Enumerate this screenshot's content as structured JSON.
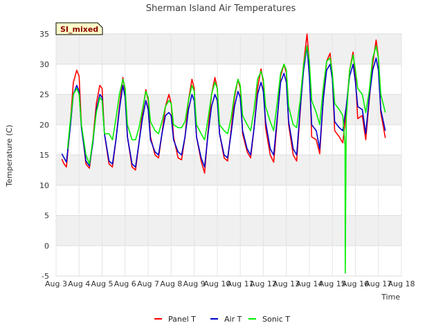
{
  "chart_data": {
    "type": "line",
    "title": "Sherman Island Air Temperatures",
    "xlabel": "Time",
    "ylabel": "Temperature (C)",
    "badge": "SI_mixed",
    "ylim": [
      -5,
      35
    ],
    "yticks": [
      -5,
      0,
      5,
      10,
      15,
      20,
      25,
      30,
      35
    ],
    "xlim": [
      3,
      18
    ],
    "x_tick_values": [
      3,
      4,
      5,
      6,
      7,
      8,
      9,
      10,
      11,
      12,
      13,
      14,
      15,
      16,
      17,
      18
    ],
    "x_tick_labels": [
      "Aug 3",
      "Aug 4",
      "Aug 5",
      "Aug 6",
      "Aug 7",
      "Aug 8",
      "Aug 9",
      "Aug 10",
      "Aug 11",
      "Aug 12",
      "Aug 13",
      "Aug 14",
      "Aug 15",
      "Aug 16",
      "Aug 17",
      "Aug 18"
    ],
    "grid": true,
    "legend_position": "bottom-center",
    "series": [
      {
        "name": "Panel T",
        "color": "#ff0000",
        "x": [
          3.25,
          3.35,
          3.45,
          3.6,
          3.75,
          3.9,
          4.0,
          4.1,
          4.3,
          4.45,
          4.6,
          4.75,
          4.9,
          5.0,
          5.1,
          5.3,
          5.45,
          5.6,
          5.75,
          5.9,
          6.0,
          6.1,
          6.3,
          6.45,
          6.6,
          6.75,
          6.9,
          7.0,
          7.1,
          7.3,
          7.45,
          7.6,
          7.75,
          7.9,
          8.0,
          8.1,
          8.3,
          8.45,
          8.6,
          8.75,
          8.9,
          9.0,
          9.1,
          9.3,
          9.45,
          9.6,
          9.75,
          9.9,
          10.0,
          10.1,
          10.3,
          10.45,
          10.6,
          10.75,
          10.9,
          11.0,
          11.1,
          11.3,
          11.45,
          11.6,
          11.75,
          11.9,
          12.0,
          12.1,
          12.3,
          12.45,
          12.6,
          12.75,
          12.9,
          13.0,
          13.1,
          13.3,
          13.45,
          13.6,
          13.75,
          13.9,
          14.0,
          14.1,
          14.3,
          14.45,
          14.6,
          14.75,
          14.9,
          15.0,
          15.1,
          15.3,
          15.45,
          15.6,
          15.75,
          15.9,
          16.0,
          16.1,
          16.3,
          16.45,
          16.6,
          16.75,
          16.9,
          17.0,
          17.1,
          17.3
        ],
        "y": [
          14.3,
          13.5,
          13.0,
          19.5,
          27.0,
          29.0,
          28.0,
          20.0,
          13.5,
          12.8,
          17.5,
          23.5,
          26.5,
          26.0,
          18.5,
          13.5,
          13.0,
          17.5,
          23.0,
          27.8,
          25.5,
          18.0,
          13.0,
          12.5,
          17.0,
          22.0,
          25.8,
          24.0,
          18.0,
          15.0,
          14.5,
          18.5,
          23.0,
          25.0,
          23.5,
          18.0,
          14.5,
          14.2,
          18.0,
          24.0,
          27.5,
          26.0,
          18.0,
          14.0,
          12.0,
          19.0,
          25.0,
          27.8,
          26.0,
          18.5,
          14.5,
          14.0,
          19.0,
          24.5,
          27.5,
          26.0,
          18.5,
          15.5,
          14.5,
          19.5,
          26.0,
          29.2,
          27.0,
          19.5,
          15.0,
          13.8,
          20.5,
          28.0,
          30.0,
          28.5,
          20.0,
          15.0,
          14.0,
          22.0,
          30.0,
          35.0,
          30.0,
          18.0,
          17.5,
          15.2,
          24.0,
          30.5,
          31.8,
          28.0,
          19.0,
          18.0,
          17.0,
          22.0,
          29.0,
          32.0,
          28.0,
          21.0,
          21.5,
          17.5,
          24.0,
          30.0,
          34.0,
          31.0,
          22.0,
          17.8
        ]
      },
      {
        "name": "Air T",
        "color": "#0000cc",
        "x": [
          3.25,
          3.35,
          3.45,
          3.6,
          3.75,
          3.9,
          4.0,
          4.1,
          4.3,
          4.45,
          4.6,
          4.75,
          4.9,
          5.0,
          5.1,
          5.3,
          5.45,
          5.6,
          5.75,
          5.9,
          6.0,
          6.1,
          6.3,
          6.45,
          6.6,
          6.75,
          6.9,
          7.0,
          7.1,
          7.3,
          7.45,
          7.6,
          7.75,
          7.9,
          8.0,
          8.1,
          8.3,
          8.45,
          8.6,
          8.75,
          8.9,
          9.0,
          9.1,
          9.3,
          9.45,
          9.6,
          9.75,
          9.9,
          10.0,
          10.1,
          10.3,
          10.45,
          10.6,
          10.75,
          10.9,
          11.0,
          11.1,
          11.3,
          11.45,
          11.6,
          11.75,
          11.9,
          12.0,
          12.1,
          12.3,
          12.45,
          12.6,
          12.75,
          12.9,
          13.0,
          13.1,
          13.3,
          13.45,
          13.6,
          13.75,
          13.9,
          14.0,
          14.1,
          14.3,
          14.45,
          14.6,
          14.75,
          14.9,
          15.0,
          15.1,
          15.3,
          15.45,
          15.6,
          15.75,
          15.9,
          16.0,
          16.1,
          16.3,
          16.45,
          16.6,
          16.75,
          16.9,
          17.0,
          17.1,
          17.3
        ],
        "y": [
          15.2,
          14.5,
          13.8,
          19.0,
          25.0,
          26.5,
          25.5,
          19.5,
          14.0,
          13.2,
          17.0,
          22.5,
          25.0,
          24.5,
          18.5,
          14.0,
          13.5,
          17.5,
          22.5,
          26.5,
          24.5,
          18.0,
          13.5,
          13.0,
          17.0,
          21.0,
          24.0,
          22.5,
          17.5,
          15.5,
          15.0,
          18.5,
          21.5,
          22.0,
          21.5,
          17.5,
          15.5,
          15.0,
          18.0,
          22.5,
          25.0,
          24.0,
          18.0,
          14.5,
          13.0,
          18.5,
          23.0,
          25.0,
          24.0,
          18.5,
          15.0,
          14.5,
          18.5,
          23.0,
          25.5,
          24.5,
          19.0,
          16.0,
          15.0,
          19.5,
          25.0,
          27.0,
          25.5,
          20.5,
          16.0,
          15.0,
          21.0,
          27.0,
          28.5,
          27.0,
          20.5,
          16.0,
          15.0,
          22.5,
          29.0,
          33.0,
          28.0,
          20.0,
          19.0,
          16.0,
          24.0,
          29.0,
          30.0,
          27.5,
          20.5,
          19.5,
          19.0,
          23.0,
          28.0,
          30.0,
          27.0,
          23.0,
          22.5,
          18.5,
          24.5,
          29.0,
          31.0,
          29.0,
          22.5,
          19.0
        ]
      },
      {
        "name": "Sonic T",
        "color": "#00ee00",
        "x": [
          3.5,
          3.6,
          3.75,
          3.9,
          4.0,
          4.1,
          4.3,
          4.45,
          4.6,
          4.75,
          4.9,
          5.0,
          5.1,
          5.3,
          5.45,
          5.6,
          5.75,
          5.9,
          6.0,
          6.1,
          6.3,
          6.45,
          6.6,
          6.75,
          6.9,
          7.0,
          7.1,
          7.3,
          7.45,
          7.6,
          7.75,
          7.9,
          8.0,
          8.1,
          8.3,
          8.45,
          8.6,
          8.75,
          8.9,
          9.0,
          9.1,
          9.3,
          9.45,
          9.6,
          9.75,
          9.9,
          10.0,
          10.1,
          10.3,
          10.45,
          10.6,
          10.75,
          10.9,
          11.0,
          11.1,
          11.3,
          11.45,
          11.6,
          11.75,
          11.9,
          12.0,
          12.1,
          12.3,
          12.45,
          12.6,
          12.75,
          12.9,
          13.0,
          13.1,
          13.3,
          13.45,
          13.6,
          13.75,
          13.9,
          14.0,
          14.1,
          14.3,
          14.45,
          14.6,
          14.75,
          14.9,
          15.0,
          15.1,
          15.3,
          15.45,
          15.55,
          15.56,
          15.6,
          15.75,
          15.9,
          16.0,
          16.1,
          16.3,
          16.45,
          16.6,
          16.75,
          16.9,
          17.0,
          17.1,
          17.3
        ],
        "y": [
          16.0,
          20.0,
          25.0,
          26.0,
          25.0,
          20.0,
          15.0,
          13.5,
          17.5,
          22.0,
          24.5,
          24.0,
          18.5,
          18.5,
          17.5,
          21.0,
          25.0,
          27.5,
          26.0,
          20.0,
          17.5,
          17.5,
          19.5,
          22.5,
          25.5,
          24.5,
          20.5,
          19.0,
          18.5,
          20.5,
          23.0,
          24.0,
          23.5,
          20.0,
          19.5,
          19.5,
          20.5,
          24.0,
          26.5,
          25.5,
          20.0,
          18.5,
          17.5,
          21.0,
          25.0,
          27.0,
          26.0,
          20.0,
          19.0,
          18.5,
          21.0,
          25.0,
          27.5,
          26.5,
          21.5,
          20.0,
          19.0,
          22.5,
          27.5,
          28.8,
          27.5,
          23.0,
          20.5,
          19.0,
          23.5,
          28.5,
          30.0,
          29.0,
          23.0,
          20.0,
          19.5,
          24.0,
          30.0,
          33.0,
          30.5,
          24.0,
          22.0,
          20.0,
          26.0,
          30.5,
          31.0,
          28.5,
          23.5,
          22.5,
          21.5,
          16.5,
          -4.5,
          21.0,
          29.0,
          31.5,
          29.0,
          26.0,
          25.0,
          22.0,
          25.5,
          31.0,
          33.0,
          31.0,
          25.0,
          22.0
        ]
      }
    ]
  }
}
